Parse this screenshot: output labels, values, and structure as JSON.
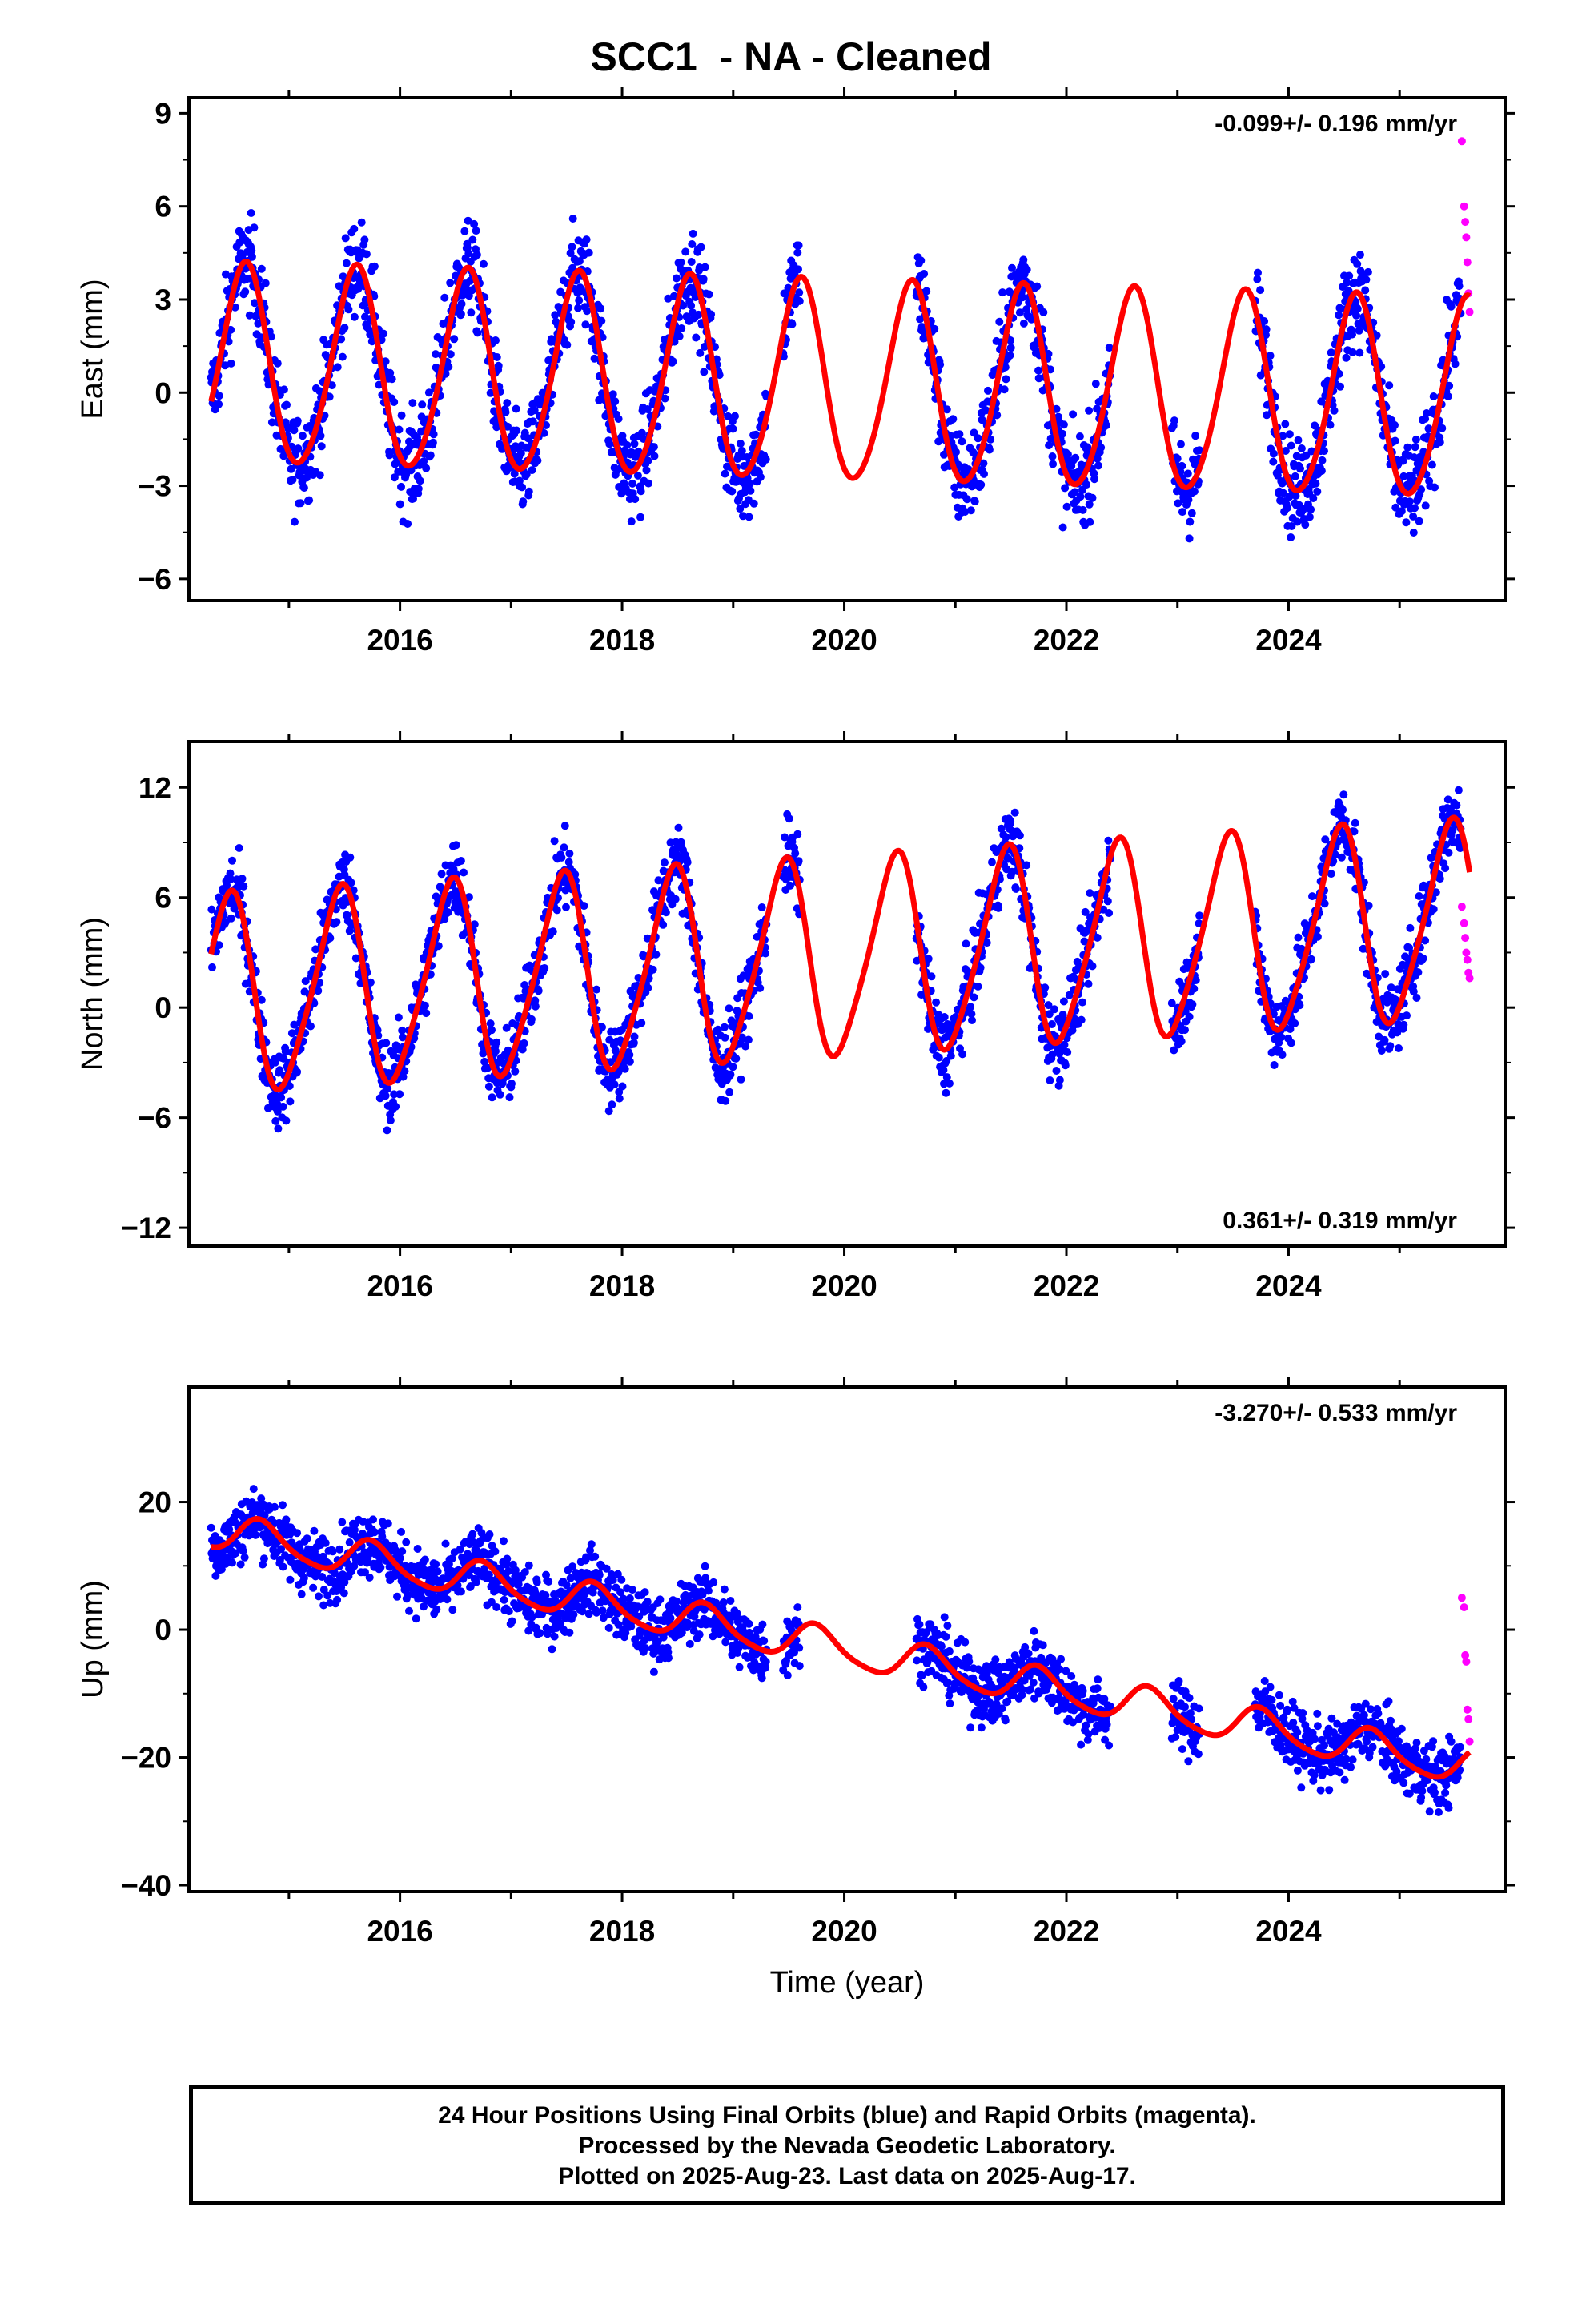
{
  "title": "SCC1  - NA - Cleaned",
  "xlabel": "Time (year)",
  "footer": {
    "line1": "24 Hour Positions Using Final Orbits (blue) and Rapid Orbits (magenta).",
    "line2": "Processed by the Nevada Geodetic Laboratory.",
    "line3": "Plotted on 2025-Aug-23. Last data on 2025-Aug-17."
  },
  "colors": {
    "final_orbits": "#0000ff",
    "rapid_orbits": "#ff00ff",
    "model_fit": "#ff0000",
    "frame": "#000000"
  },
  "chart_data": [
    {
      "type": "scatter",
      "ylabel": "East (mm)",
      "rate_label": "-0.099+/- 0.196 mm/yr",
      "rate_position": "top-right",
      "xlim": [
        2014.1,
        2025.95
      ],
      "ylim": [
        -6.7,
        9.5
      ],
      "xticks": [
        2016,
        2018,
        2020,
        2022,
        2024
      ],
      "yticks": [
        -6,
        -3,
        0,
        3,
        6,
        9
      ],
      "grid": false,
      "model": {
        "name": "red fit",
        "offset": 0.8,
        "rate": -0.099,
        "annual_amp": 3.2,
        "annual_peak": 0.6,
        "semi_amp": 0.3,
        "semi_peak": 0.15,
        "t_start": 2014.3,
        "t_end": 2025.63
      },
      "final_noise": 1.1,
      "final_segments": [
        [
          2014.3,
          2019.3
        ],
        [
          2019.45,
          2019.6
        ],
        [
          2020.65,
          2022.4
        ],
        [
          2022.95,
          2023.2
        ],
        [
          2023.7,
          2025.55
        ]
      ],
      "rapid": {
        "t": [
          2025.56,
          2025.58,
          2025.59,
          2025.6,
          2025.61,
          2025.62,
          2025.63
        ],
        "y": [
          8.1,
          6.0,
          5.5,
          5.0,
          4.2,
          3.2,
          2.6
        ]
      }
    },
    {
      "type": "scatter",
      "ylabel": "North (mm)",
      "rate_label": "0.361+/- 0.319 mm/yr",
      "rate_position": "bottom-right",
      "xlim": [
        2014.1,
        2025.95
      ],
      "ylim": [
        -13,
        14.5
      ],
      "xticks": [
        2016,
        2018,
        2020,
        2022,
        2024
      ],
      "yticks": [
        -12,
        -6,
        0,
        6,
        12
      ],
      "grid": false,
      "model": {
        "name": "red fit",
        "offset": 0.6,
        "rate": 0.361,
        "annual_amp": 5.3,
        "annual_peak": 0.45,
        "semi_amp": 0.8,
        "semi_peak": 0.05,
        "t_start": 2014.3,
        "t_end": 2025.63
      },
      "final_noise": 1.5,
      "final_segments": [
        [
          2014.3,
          2019.3
        ],
        [
          2019.45,
          2019.6
        ],
        [
          2020.65,
          2022.4
        ],
        [
          2022.95,
          2023.2
        ],
        [
          2023.7,
          2025.55
        ]
      ],
      "rapid": {
        "t": [
          2025.56,
          2025.58,
          2025.59,
          2025.6,
          2025.61,
          2025.62,
          2025.63
        ],
        "y": [
          5.5,
          4.6,
          3.8,
          3.0,
          2.6,
          1.9,
          1.6
        ]
      }
    },
    {
      "type": "scatter",
      "ylabel": "Up (mm)",
      "rate_label": "-3.270+/- 0.533 mm/yr",
      "rate_position": "top-right",
      "xlim": [
        2014.1,
        2025.95
      ],
      "ylim": [
        -41,
        38
      ],
      "xticks": [
        2016,
        2018,
        2020,
        2022,
        2024
      ],
      "yticks": [
        -40,
        -20,
        0,
        20
      ],
      "grid": false,
      "model": {
        "name": "red fit",
        "offset": 15.5,
        "rate": -3.27,
        "annual_amp": 2.8,
        "annual_peak": 0.75,
        "semi_amp": 0.5,
        "semi_peak": 0.2,
        "t_start": 2014.3,
        "t_end": 2025.63
      },
      "final_noise": 3.6,
      "final_segments": [
        [
          2014.3,
          2019.3
        ],
        [
          2019.45,
          2019.6
        ],
        [
          2020.65,
          2022.4
        ],
        [
          2022.95,
          2023.2
        ],
        [
          2023.7,
          2025.55
        ]
      ],
      "rapid": {
        "t": [
          2025.56,
          2025.58,
          2025.59,
          2025.6,
          2025.61,
          2025.62,
          2025.63
        ],
        "y": [
          5.0,
          3.5,
          -4.0,
          -5.0,
          -12.5,
          -14.0,
          -17.5
        ]
      }
    }
  ]
}
